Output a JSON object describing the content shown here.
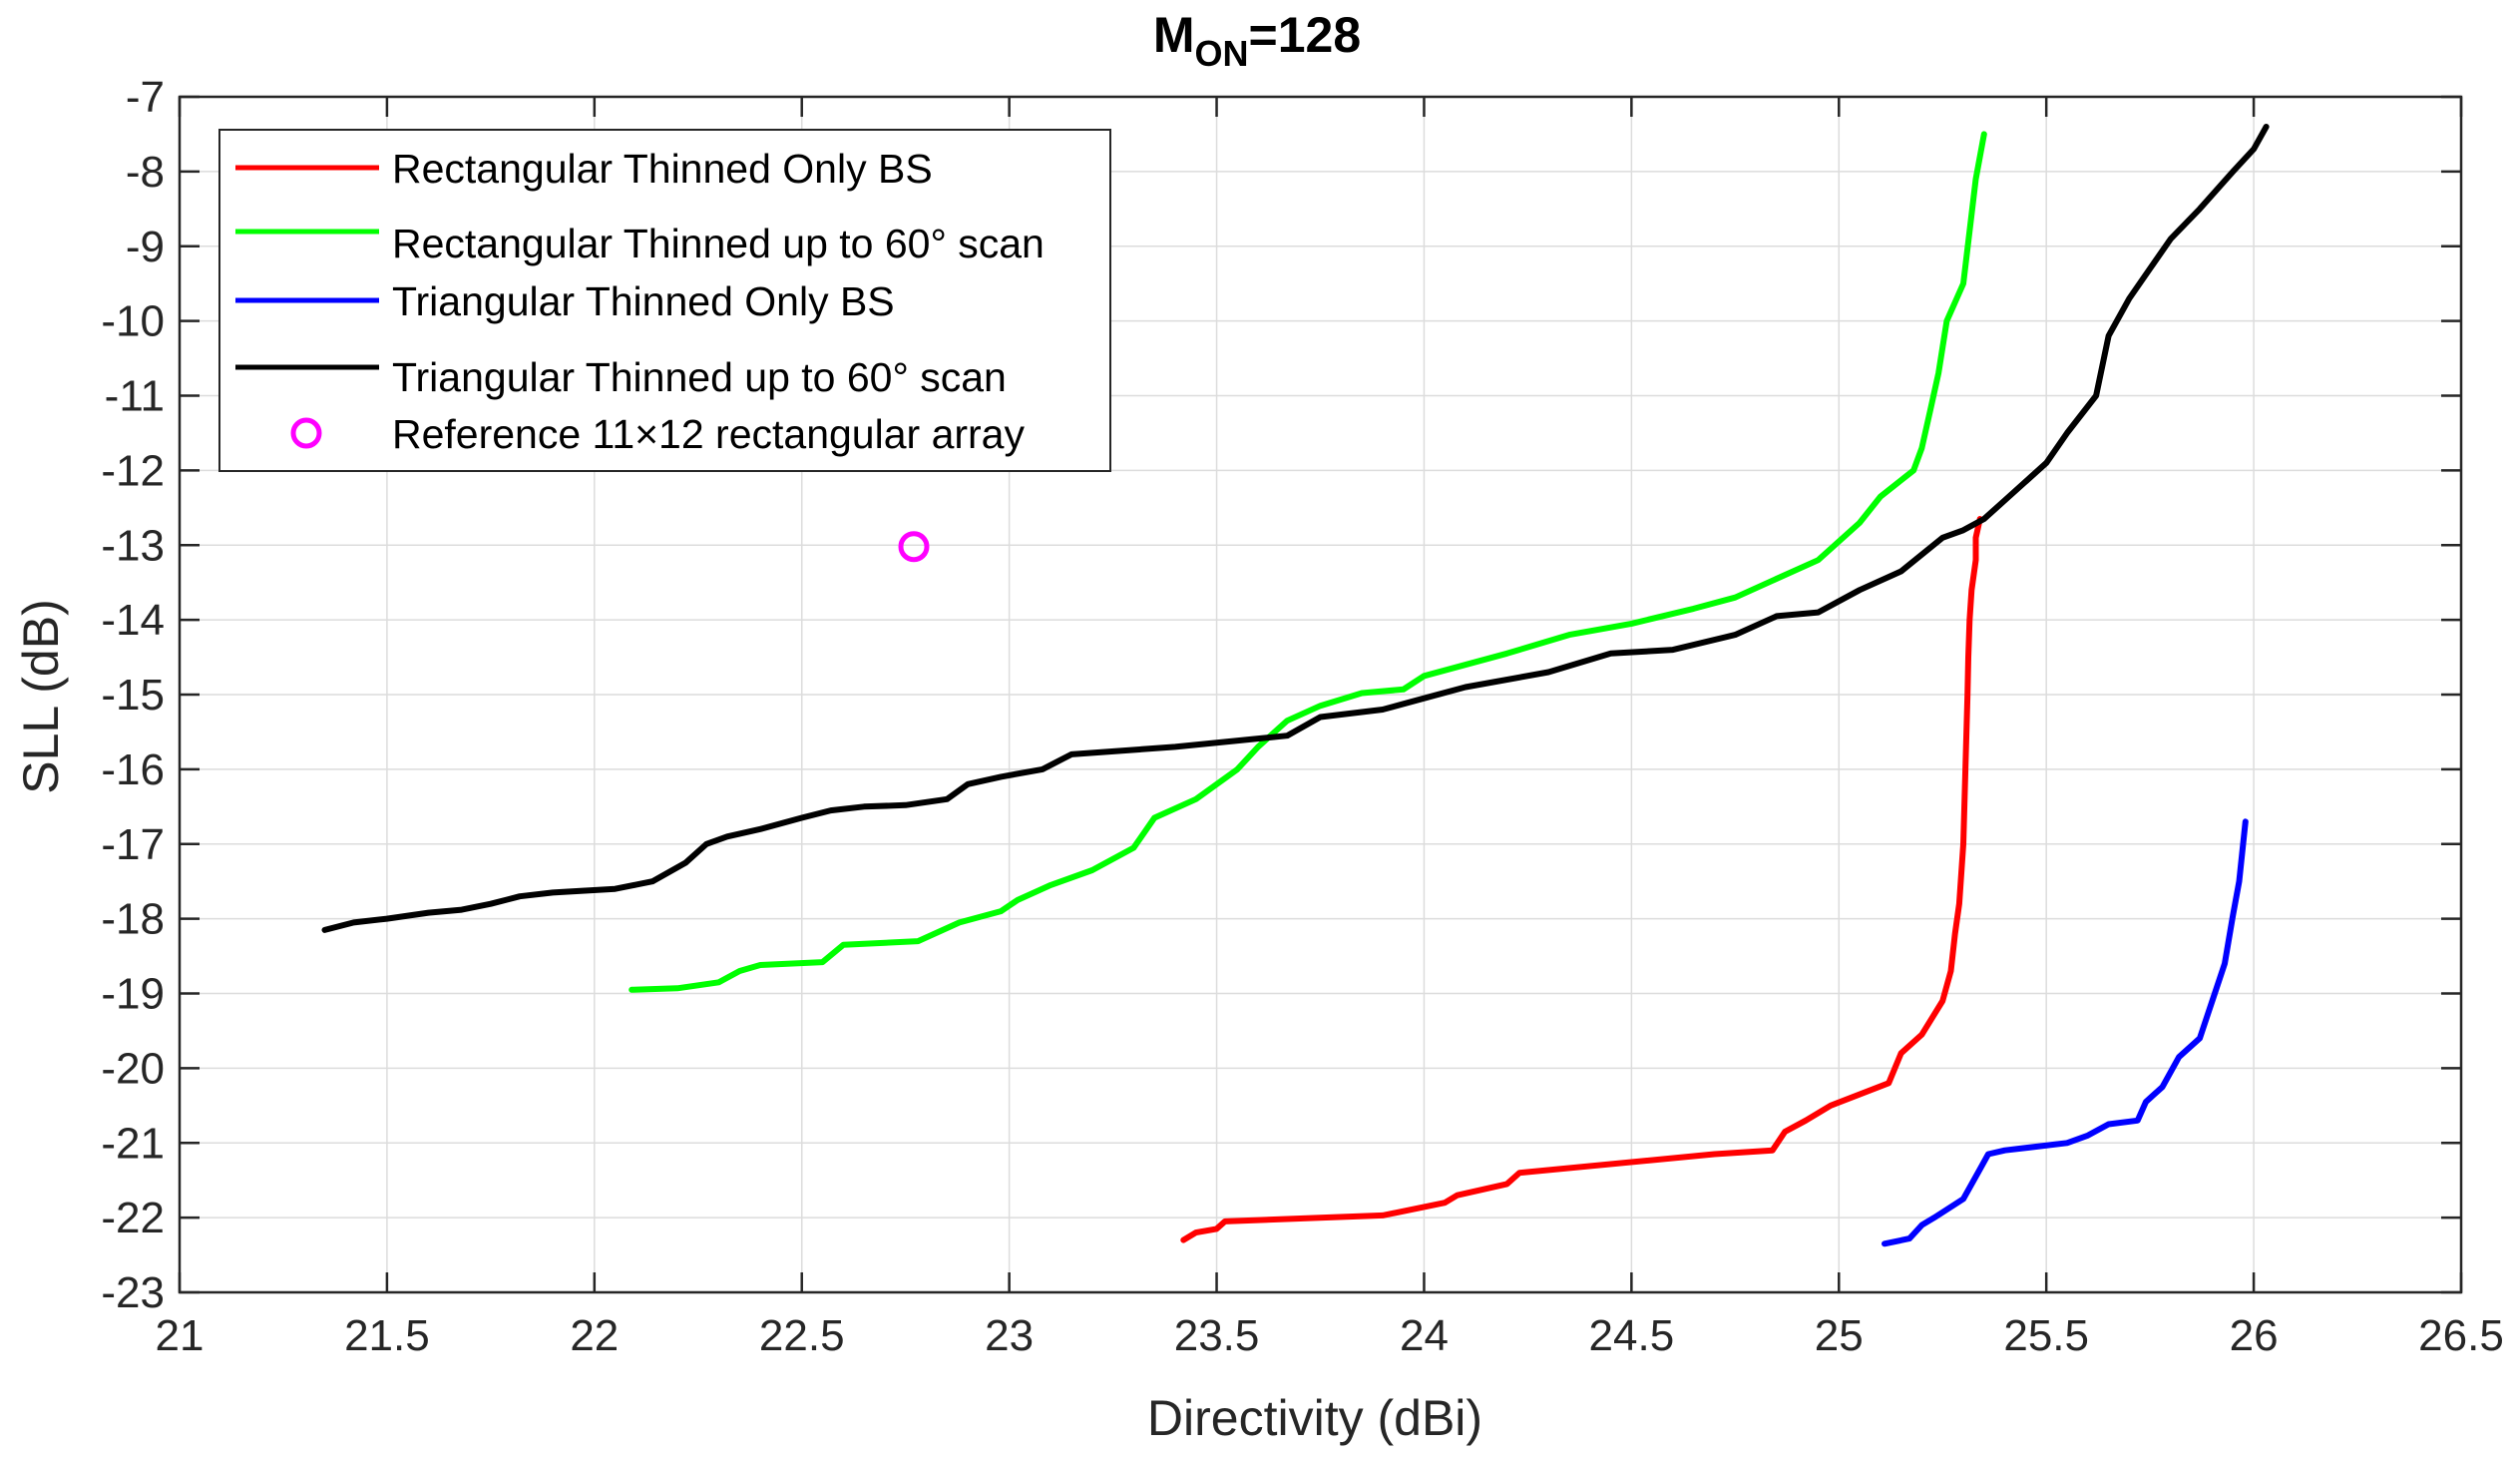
{
  "chart_data": {
    "type": "line",
    "title": {
      "main": "M",
      "sub": "ON",
      "rest": "=128"
    },
    "xlabel": "Directivity (dBi)",
    "ylabel": "SLL (dB)",
    "xlim": [
      21,
      26.5
    ],
    "ylim": [
      -23,
      -7
    ],
    "xticks": [
      "21",
      "21.5",
      "22",
      "22.5",
      "23",
      "23.5",
      "24",
      "24.5",
      "25",
      "25.5",
      "26",
      "26.5"
    ],
    "yticks": [
      "-7",
      "-8",
      "-9",
      "-10",
      "-11",
      "-12",
      "-13",
      "-14",
      "-15",
      "-16",
      "-17",
      "-18",
      "-19",
      "-20",
      "-21",
      "-22",
      "-23"
    ],
    "grid": true,
    "legend_position": "top-left",
    "series": [
      {
        "name": "Rectangular Thinned Only BS",
        "color": "#ff0000",
        "x": [
          23.42,
          23.45,
          23.5,
          23.52,
          23.9,
          24.05,
          24.08,
          24.2,
          24.23,
          24.7,
          24.84,
          24.87,
          24.92,
          24.98,
          25.05,
          25.12,
          25.15,
          25.2,
          25.25,
          25.27,
          25.28,
          25.29,
          25.3,
          25.305,
          25.31,
          25.312,
          25.315,
          25.32,
          25.33,
          25.33,
          25.34
        ],
        "y": [
          -22.3,
          -22.2,
          -22.15,
          -22.05,
          -21.97,
          -21.8,
          -21.7,
          -21.55,
          -21.4,
          -21.15,
          -21.1,
          -20.85,
          -20.7,
          -20.5,
          -20.35,
          -20.2,
          -19.8,
          -19.55,
          -19.1,
          -18.7,
          -18.2,
          -17.8,
          -17.0,
          -16.0,
          -15.0,
          -14.5,
          -14.0,
          -13.6,
          -13.2,
          -12.9,
          -12.65
        ]
      },
      {
        "name": "Rectangular Thinned up to 60° scan",
        "color": "#00ff00",
        "x": [
          22.09,
          22.2,
          22.3,
          22.35,
          22.4,
          22.55,
          22.6,
          22.78,
          22.88,
          22.98,
          23.02,
          23.1,
          23.2,
          23.3,
          23.35,
          23.45,
          23.55,
          23.6,
          23.67,
          23.75,
          23.85,
          23.95,
          24.0,
          24.2,
          24.35,
          24.5,
          24.65,
          24.75,
          24.85,
          24.95,
          25.05,
          25.1,
          25.18,
          25.2,
          25.22,
          25.24,
          25.26,
          25.3,
          25.33,
          25.35
        ],
        "y": [
          -18.95,
          -18.93,
          -18.85,
          -18.7,
          -18.62,
          -18.58,
          -18.35,
          -18.3,
          -18.05,
          -17.9,
          -17.75,
          -17.55,
          -17.35,
          -17.05,
          -16.65,
          -16.4,
          -16.0,
          -15.7,
          -15.35,
          -15.15,
          -14.98,
          -14.93,
          -14.75,
          -14.45,
          -14.2,
          -14.05,
          -13.85,
          -13.7,
          -13.45,
          -13.2,
          -12.7,
          -12.35,
          -12.0,
          -11.7,
          -11.2,
          -10.7,
          -10.0,
          -9.5,
          -8.1,
          -7.5
        ]
      },
      {
        "name": "Triangular Thinned Only BS",
        "color": "#0000ff",
        "x": [
          25.11,
          25.17,
          25.2,
          25.23,
          25.3,
          25.34,
          25.36,
          25.4,
          25.55,
          25.6,
          25.65,
          25.72,
          25.74,
          25.78,
          25.82,
          25.87,
          25.9,
          25.93,
          25.95,
          25.965,
          25.98
        ],
        "y": [
          -22.35,
          -22.28,
          -22.1,
          -22.0,
          -21.75,
          -21.35,
          -21.15,
          -21.1,
          -21.0,
          -20.9,
          -20.75,
          -20.7,
          -20.45,
          -20.25,
          -19.85,
          -19.6,
          -19.1,
          -18.6,
          -17.95,
          -17.5,
          -16.7
        ]
      },
      {
        "name": "Triangular Thinned up to 60° scan",
        "color": "#000000",
        "x": [
          21.35,
          21.42,
          21.5,
          21.6,
          21.68,
          21.75,
          21.82,
          21.9,
          22.05,
          22.14,
          22.22,
          22.27,
          22.32,
          22.4,
          22.5,
          22.57,
          22.65,
          22.75,
          22.85,
          22.9,
          22.98,
          23.08,
          23.15,
          23.4,
          23.67,
          23.75,
          23.9,
          24.0,
          24.1,
          24.3,
          24.45,
          24.6,
          24.75,
          24.85,
          24.95,
          25.05,
          25.15,
          25.25,
          25.3,
          25.35,
          25.4,
          25.5,
          25.55,
          25.62,
          25.65,
          25.7,
          25.75,
          25.8,
          25.87,
          25.95,
          26.0,
          26.03
        ],
        "y": [
          -18.15,
          -18.05,
          -18.0,
          -17.92,
          -17.88,
          -17.8,
          -17.7,
          -17.65,
          -17.6,
          -17.5,
          -17.25,
          -17.0,
          -16.9,
          -16.8,
          -16.65,
          -16.55,
          -16.5,
          -16.48,
          -16.4,
          -16.2,
          -16.1,
          -16.0,
          -15.8,
          -15.7,
          -15.55,
          -15.3,
          -15.2,
          -15.05,
          -14.9,
          -14.7,
          -14.45,
          -14.4,
          -14.2,
          -13.95,
          -13.9,
          -13.6,
          -13.35,
          -12.9,
          -12.8,
          -12.65,
          -12.4,
          -11.9,
          -11.5,
          -11.0,
          -10.2,
          -9.7,
          -9.3,
          -8.9,
          -8.5,
          -8.0,
          -7.7,
          -7.4
        ]
      },
      {
        "name": "Reference 11×12 rectangular array",
        "color": "#ff00ff",
        "marker": "circle",
        "x": [
          22.77
        ],
        "y": [
          -13.02
        ]
      }
    ]
  }
}
